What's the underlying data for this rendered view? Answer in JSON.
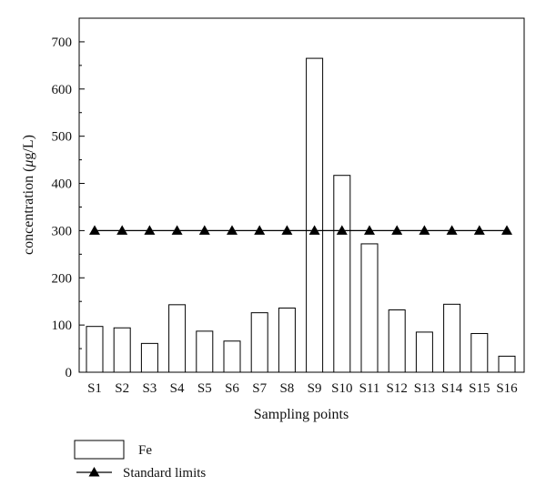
{
  "chart_data": {
    "type": "bar",
    "xlabel": "Sampling points",
    "ylabel_parts": [
      "concentration (",
      "μ",
      "g/L)"
    ],
    "ylim": [
      0,
      750
    ],
    "yticks": [
      0,
      100,
      200,
      300,
      400,
      500,
      600,
      700
    ],
    "categories": [
      "S1",
      "S2",
      "S3",
      "S4",
      "S5",
      "S6",
      "S7",
      "S8",
      "S9",
      "S10",
      "S11",
      "S12",
      "S13",
      "S14",
      "S15",
      "S16"
    ],
    "series": [
      {
        "name": "Fe",
        "kind": "bar",
        "color": "#ffffff",
        "stroke": "#000000",
        "values": [
          97,
          94,
          61,
          143,
          87,
          66,
          126,
          136,
          665,
          417,
          272,
          132,
          85,
          144,
          82,
          34
        ]
      },
      {
        "name": "Standard limits",
        "kind": "line",
        "marker": "triangle",
        "color": "#000000",
        "values": [
          300,
          300,
          300,
          300,
          300,
          300,
          300,
          300,
          300,
          300,
          300,
          300,
          300,
          300,
          300,
          300
        ]
      }
    ],
    "legend_position": "bottom-left",
    "grid": false
  }
}
